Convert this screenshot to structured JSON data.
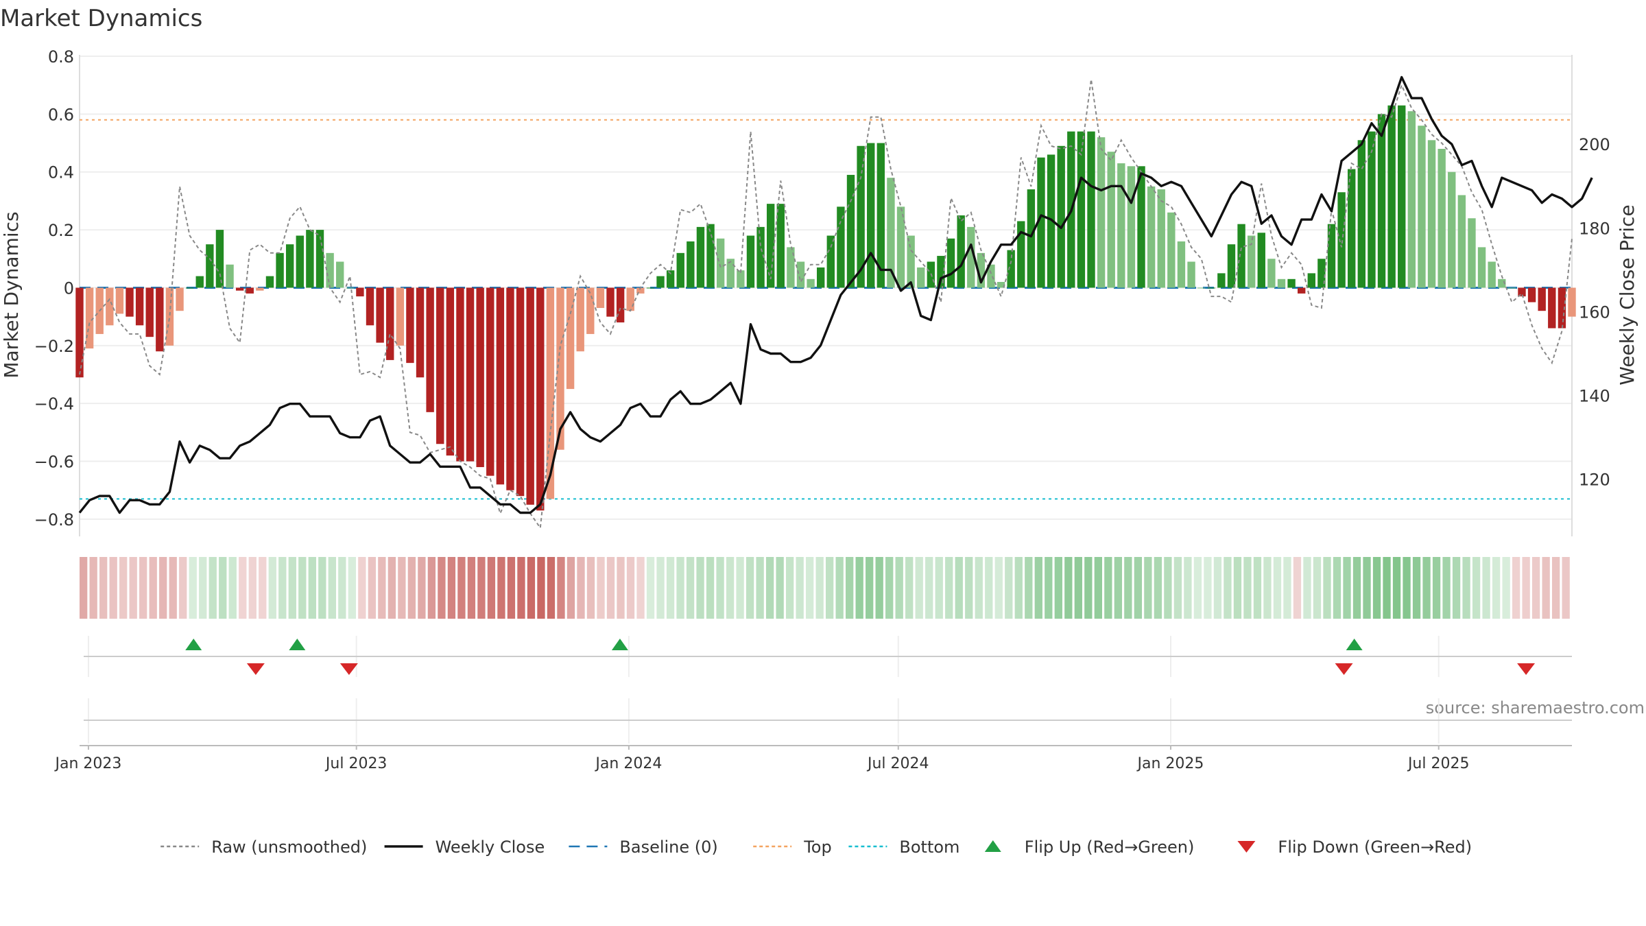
{
  "chart_data": {
    "type": "bar",
    "title": "Market Dynamics",
    "ylabel": "Market Dynamics",
    "ylabel_right": "Weekly Close Price",
    "ylim": [
      -0.85,
      0.8
    ],
    "ylim_right": [
      107,
      221
    ],
    "yticks": [
      -0.8,
      -0.6,
      -0.4,
      -0.2,
      0,
      0.2,
      0.4,
      0.6,
      0.8
    ],
    "yticks_right": [
      120,
      140,
      160,
      180,
      200
    ],
    "x_start": "2022-12-26",
    "x_end": "2025-09-29",
    "xticks": [
      {
        "date": "2023-01-01",
        "label": "Jan 2023"
      },
      {
        "date": "2023-07-01",
        "label": "Jul 2023"
      },
      {
        "date": "2024-01-01",
        "label": "Jan 2024"
      },
      {
        "date": "2024-07-01",
        "label": "Jul 2024"
      },
      {
        "date": "2025-01-01",
        "label": "Jan 2025"
      },
      {
        "date": "2025-07-01",
        "label": "Jul 2025"
      }
    ],
    "top_line": 0.58,
    "bottom_line": -0.73,
    "baseline": 0,
    "colors": {
      "strong_up": "#228b22",
      "weak_up": "#80c080",
      "strong_down": "#b22222",
      "weak_down": "#e9967a",
      "close": "#111111",
      "raw": "#888888",
      "baseline": "#1f77b4",
      "top": "#f4a460",
      "bottom": "#17becf",
      "flip_up": "#22a045",
      "flip_down": "#d62728"
    },
    "series": [
      {
        "name": "Market Dynamics",
        "values": [
          -0.31,
          -0.21,
          -0.16,
          -0.13,
          -0.09,
          -0.1,
          -0.13,
          -0.17,
          -0.22,
          -0.2,
          -0.08,
          0.0,
          0.04,
          0.15,
          0.2,
          0.08,
          -0.01,
          -0.02,
          -0.01,
          0.04,
          0.12,
          0.15,
          0.18,
          0.2,
          0.2,
          0.12,
          0.09,
          0.0,
          -0.03,
          -0.13,
          -0.19,
          -0.25,
          -0.2,
          -0.26,
          -0.31,
          -0.43,
          -0.54,
          -0.58,
          -0.6,
          -0.6,
          -0.62,
          -0.65,
          -0.68,
          -0.7,
          -0.72,
          -0.75,
          -0.77,
          -0.73,
          -0.56,
          -0.35,
          -0.22,
          -0.16,
          -0.07,
          -0.1,
          -0.12,
          -0.08,
          -0.02,
          0.0,
          0.04,
          0.06,
          0.12,
          0.16,
          0.21,
          0.22,
          0.17,
          0.1,
          0.06,
          0.18,
          0.21,
          0.29,
          0.29,
          0.14,
          0.09,
          0.03,
          0.07,
          0.18,
          0.28,
          0.39,
          0.49,
          0.5,
          0.5,
          0.38,
          0.28,
          0.18,
          0.07,
          0.09,
          0.11,
          0.17,
          0.25,
          0.21,
          0.12,
          0.08,
          0.02,
          0.13,
          0.23,
          0.34,
          0.45,
          0.46,
          0.49,
          0.54,
          0.54,
          0.54,
          0.52,
          0.47,
          0.43,
          0.42,
          0.42,
          0.35,
          0.34,
          0.26,
          0.16,
          0.09,
          0.0,
          0.0,
          0.05,
          0.15,
          0.22,
          0.18,
          0.19,
          0.1,
          0.03,
          0.03,
          -0.02,
          0.05,
          0.1,
          0.22,
          0.33,
          0.41,
          0.51,
          0.54,
          0.6,
          0.63,
          0.63,
          0.61,
          0.56,
          0.51,
          0.48,
          0.4,
          0.32,
          0.24,
          0.14,
          0.09,
          0.03,
          0.0,
          -0.03,
          -0.05,
          -0.08,
          -0.14,
          -0.14,
          -0.1
        ]
      },
      {
        "name": "Raw (unsmoothed)",
        "values": [
          -0.3,
          -0.12,
          -0.08,
          -0.04,
          -0.12,
          -0.16,
          -0.16,
          -0.27,
          -0.3,
          -0.1,
          0.35,
          0.18,
          0.13,
          0.1,
          0.05,
          -0.14,
          -0.19,
          0.13,
          0.15,
          0.12,
          0.12,
          0.24,
          0.28,
          0.2,
          0.18,
          0.0,
          -0.05,
          0.04,
          -0.3,
          -0.29,
          -0.31,
          -0.16,
          -0.21,
          -0.5,
          -0.51,
          -0.57,
          -0.56,
          -0.55,
          -0.6,
          -0.62,
          -0.65,
          -0.66,
          -0.78,
          -0.7,
          -0.72,
          -0.78,
          -0.83,
          -0.5,
          -0.2,
          -0.09,
          0.04,
          -0.02,
          -0.12,
          -0.16,
          -0.07,
          -0.08,
          0.0,
          0.05,
          0.08,
          0.05,
          0.27,
          0.26,
          0.29,
          0.19,
          0.07,
          0.09,
          0.05,
          0.54,
          0.14,
          0.03,
          0.37,
          0.15,
          0.02,
          0.08,
          0.08,
          0.14,
          0.23,
          0.3,
          0.38,
          0.59,
          0.59,
          0.41,
          0.28,
          0.13,
          0.09,
          0.05,
          -0.05,
          0.31,
          0.23,
          0.26,
          0.13,
          0.05,
          -0.03,
          0.09,
          0.45,
          0.35,
          0.56,
          0.49,
          0.48,
          0.49,
          0.46,
          0.72,
          0.48,
          0.44,
          0.51,
          0.45,
          0.4,
          0.35,
          0.3,
          0.28,
          0.22,
          0.14,
          0.1,
          -0.03,
          -0.03,
          -0.05,
          0.14,
          0.15,
          0.36,
          0.18,
          0.07,
          0.12,
          0.08,
          -0.06,
          -0.07,
          0.27,
          0.14,
          0.43,
          0.41,
          0.47,
          0.6,
          0.59,
          0.7,
          0.62,
          0.58,
          0.53,
          0.5,
          0.46,
          0.42,
          0.33,
          0.27,
          0.15,
          0.04,
          -0.05,
          -0.02,
          -0.13,
          -0.21,
          -0.26,
          -0.15,
          0.17
        ]
      },
      {
        "name": "Weekly Close",
        "values": [
          112,
          115,
          116,
          116,
          112,
          115,
          115,
          114,
          114,
          117,
          129,
          124,
          128,
          127,
          125,
          125,
          128,
          129,
          131,
          133,
          137,
          138,
          138,
          135,
          135,
          135,
          131,
          130,
          130,
          134,
          135,
          128,
          126,
          124,
          124,
          126,
          123,
          123,
          123,
          118,
          118,
          116,
          114,
          114,
          112,
          112,
          114,
          121,
          132,
          136,
          132,
          130,
          129,
          131,
          133,
          137,
          138,
          135,
          135,
          139,
          141,
          138,
          138,
          139,
          141,
          143,
          138,
          157,
          151,
          150,
          150,
          148,
          148,
          149,
          152,
          158,
          164,
          167,
          170,
          174,
          170,
          170,
          165,
          167,
          159,
          158,
          168,
          169,
          171,
          176,
          167,
          172,
          176,
          176,
          179,
          178,
          183,
          182,
          180,
          184,
          192,
          190,
          189,
          190,
          190,
          186,
          193,
          192,
          190,
          191,
          190,
          186,
          182,
          178,
          183,
          188,
          191,
          190,
          181,
          183,
          178,
          176,
          182,
          182,
          188,
          184,
          196,
          198,
          200,
          205,
          202,
          209,
          216,
          211,
          211,
          206,
          202,
          200,
          195,
          196,
          190,
          185,
          192,
          191,
          190,
          189,
          186,
          188,
          187,
          185,
          187,
          192
        ]
      }
    ],
    "histogram_strip": "Market Dynamics",
    "flips": [
      {
        "type": "up",
        "date": "2023-03-13"
      },
      {
        "type": "down",
        "date": "2023-04-24"
      },
      {
        "type": "up",
        "date": "2023-05-22"
      },
      {
        "type": "down",
        "date": "2023-06-26"
      },
      {
        "type": "up",
        "date": "2023-12-26"
      },
      {
        "type": "down",
        "date": "2025-04-28"
      },
      {
        "type": "up",
        "date": "2025-05-05"
      },
      {
        "type": "down",
        "date": "2025-08-29"
      }
    ],
    "legend": [
      {
        "label": "Raw (unsmoothed)",
        "kind": "line-dotted",
        "color": "#888888"
      },
      {
        "label": "Weekly Close",
        "kind": "line",
        "color": "#111111"
      },
      {
        "label": "Baseline (0)",
        "kind": "line-dashed",
        "color": "#1f77b4"
      },
      {
        "label": "Top",
        "kind": "line-dotted",
        "color": "#f4a460"
      },
      {
        "label": "Bottom",
        "kind": "line-dotted",
        "color": "#17becf"
      },
      {
        "label": "Flip Up (Red→Green)",
        "kind": "triangle-up",
        "color": "#22a045"
      },
      {
        "label": "Flip Down (Green→Red)",
        "kind": "triangle-down",
        "color": "#d62728"
      }
    ],
    "legend_position": "bottom-center",
    "grid": true,
    "source_note": "source: sharemaestro.com"
  }
}
